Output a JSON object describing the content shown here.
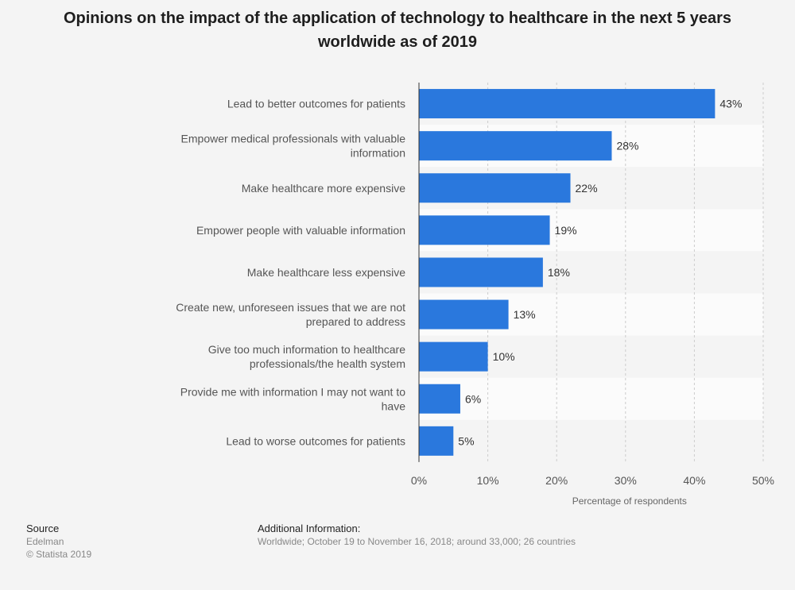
{
  "title": "Opinions on the impact of the application of technology to healthcare in the next 5 years worldwide as of 2019",
  "colors": {
    "bar": "#2a78dd",
    "grid": "#cccccc",
    "stripe": "#ffffff"
  },
  "chart_data": {
    "type": "bar",
    "orientation": "horizontal",
    "categories": [
      "Lead to better outcomes for patients",
      "Empower medical professionals with valuable information",
      "Make healthcare more expensive",
      "Empower people with valuable information",
      "Make healthcare less expensive",
      "Create new, unforeseen issues that we are not prepared to address",
      "Give too much information to healthcare professionals/the health system",
      "Provide me with information I may not want to have",
      "Lead to worse outcomes for patients"
    ],
    "category_lines": [
      [
        "Lead to better outcomes for patients"
      ],
      [
        "Empower medical professionals with valuable",
        "information"
      ],
      [
        "Make healthcare more expensive"
      ],
      [
        "Empower people with valuable information"
      ],
      [
        "Make healthcare less expensive"
      ],
      [
        "Create new, unforeseen issues that we are not",
        "prepared to address"
      ],
      [
        "Give too much information to healthcare",
        "professionals/the health system"
      ],
      [
        "Provide me with information I may not want to",
        "have"
      ],
      [
        "Lead to worse outcomes for patients"
      ]
    ],
    "values": [
      43,
      28,
      22,
      19,
      18,
      13,
      10,
      6,
      5
    ],
    "value_labels": [
      "43%",
      "28%",
      "22%",
      "19%",
      "18%",
      "13%",
      "10%",
      "6%",
      "5%"
    ],
    "xlim": [
      0,
      50
    ],
    "xticks": [
      0,
      10,
      20,
      30,
      40,
      50
    ],
    "xtick_labels": [
      "0%",
      "10%",
      "20%",
      "30%",
      "40%",
      "50%"
    ],
    "xlabel": "Percentage of respondents",
    "ylabel": "",
    "grid": true
  },
  "footer": {
    "source_heading": "Source",
    "source_name": "Edelman",
    "copyright": "© Statista 2019",
    "info_heading": "Additional Information:",
    "info_text": "Worldwide; October 19 to November 16, 2018; around 33,000; 26 countries"
  }
}
